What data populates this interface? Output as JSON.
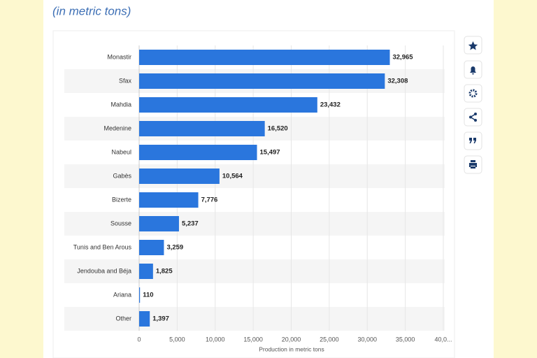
{
  "chart_data": {
    "type": "barh",
    "subtitle": "(in metric tons)",
    "xlabel": "Production in metric tons",
    "categories": [
      "Monastir",
      "Sfax",
      "Mahdia",
      "Medenine",
      "Nabeul",
      "Gabès",
      "Bizerte",
      "Sousse",
      "Tunis and Ben Arous",
      "Jendouba and Béja",
      "Ariana",
      "Other"
    ],
    "values": [
      32965,
      32308,
      23432,
      16520,
      15497,
      10564,
      7776,
      5237,
      3259,
      1825,
      110,
      1397
    ],
    "value_labels": [
      "32,965",
      "32,308",
      "23,432",
      "16,520",
      "15,497",
      "10,564",
      "7,776",
      "5,237",
      "3,259",
      "1,825",
      "110",
      "1,397"
    ],
    "color": "#2a76dd",
    "xlim": [
      0,
      40000
    ],
    "xticks": [
      0,
      {
        "value": 5000,
        "label": "5,000"
      },
      {
        "value": 10000,
        "label": "10,000"
      },
      {
        "value": 15000,
        "label": "15,000"
      },
      {
        "value": 20000,
        "label": "20,000"
      },
      {
        "value": 25000,
        "label": "25,000"
      },
      {
        "value": 30000,
        "label": "30,000"
      },
      {
        "value": 35000,
        "label": "35,000"
      },
      {
        "value": 40000,
        "label": "40,0..."
      }
    ],
    "grid": true
  }
}
